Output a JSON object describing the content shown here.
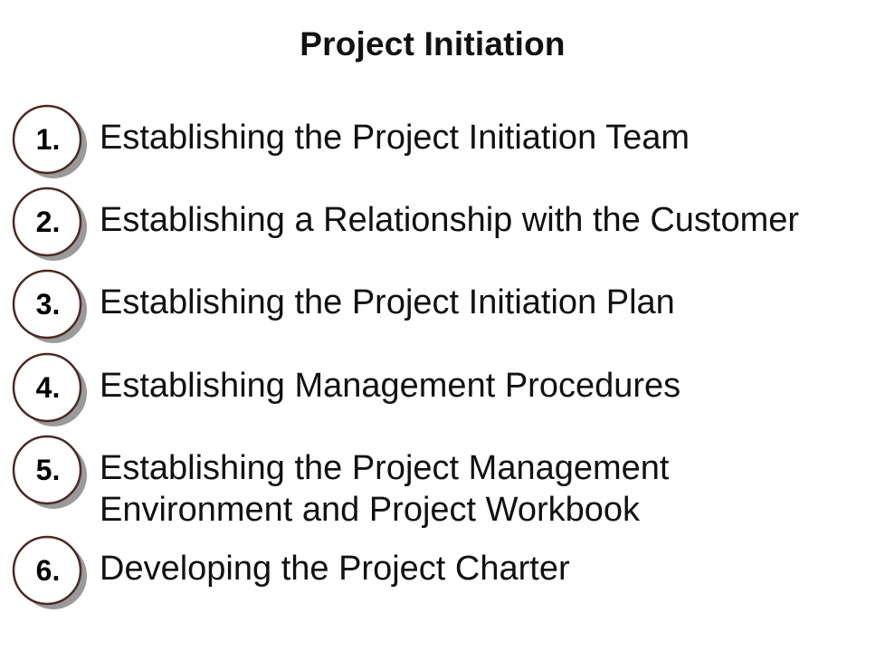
{
  "title": "Project Initiation",
  "steps": [
    {
      "number": "1.",
      "lines": [
        "Establishing the Project Initiation Team"
      ]
    },
    {
      "number": "2.",
      "lines": [
        "Establishing a Relationship with the Customer"
      ]
    },
    {
      "number": "3.",
      "lines": [
        "Establishing the Project Initiation Plan"
      ]
    },
    {
      "number": "4.",
      "lines": [
        "Establishing Management Procedures"
      ]
    },
    {
      "number": "5.",
      "lines": [
        "Establishing the Project Management",
        "Environment and Project Workbook"
      ]
    },
    {
      "number": "6.",
      "lines": [
        "Developing the Project Charter"
      ]
    }
  ],
  "colors": {
    "circle_stroke": "#4a2a22",
    "shadow": "#9a9a9a",
    "text": "#111111"
  }
}
